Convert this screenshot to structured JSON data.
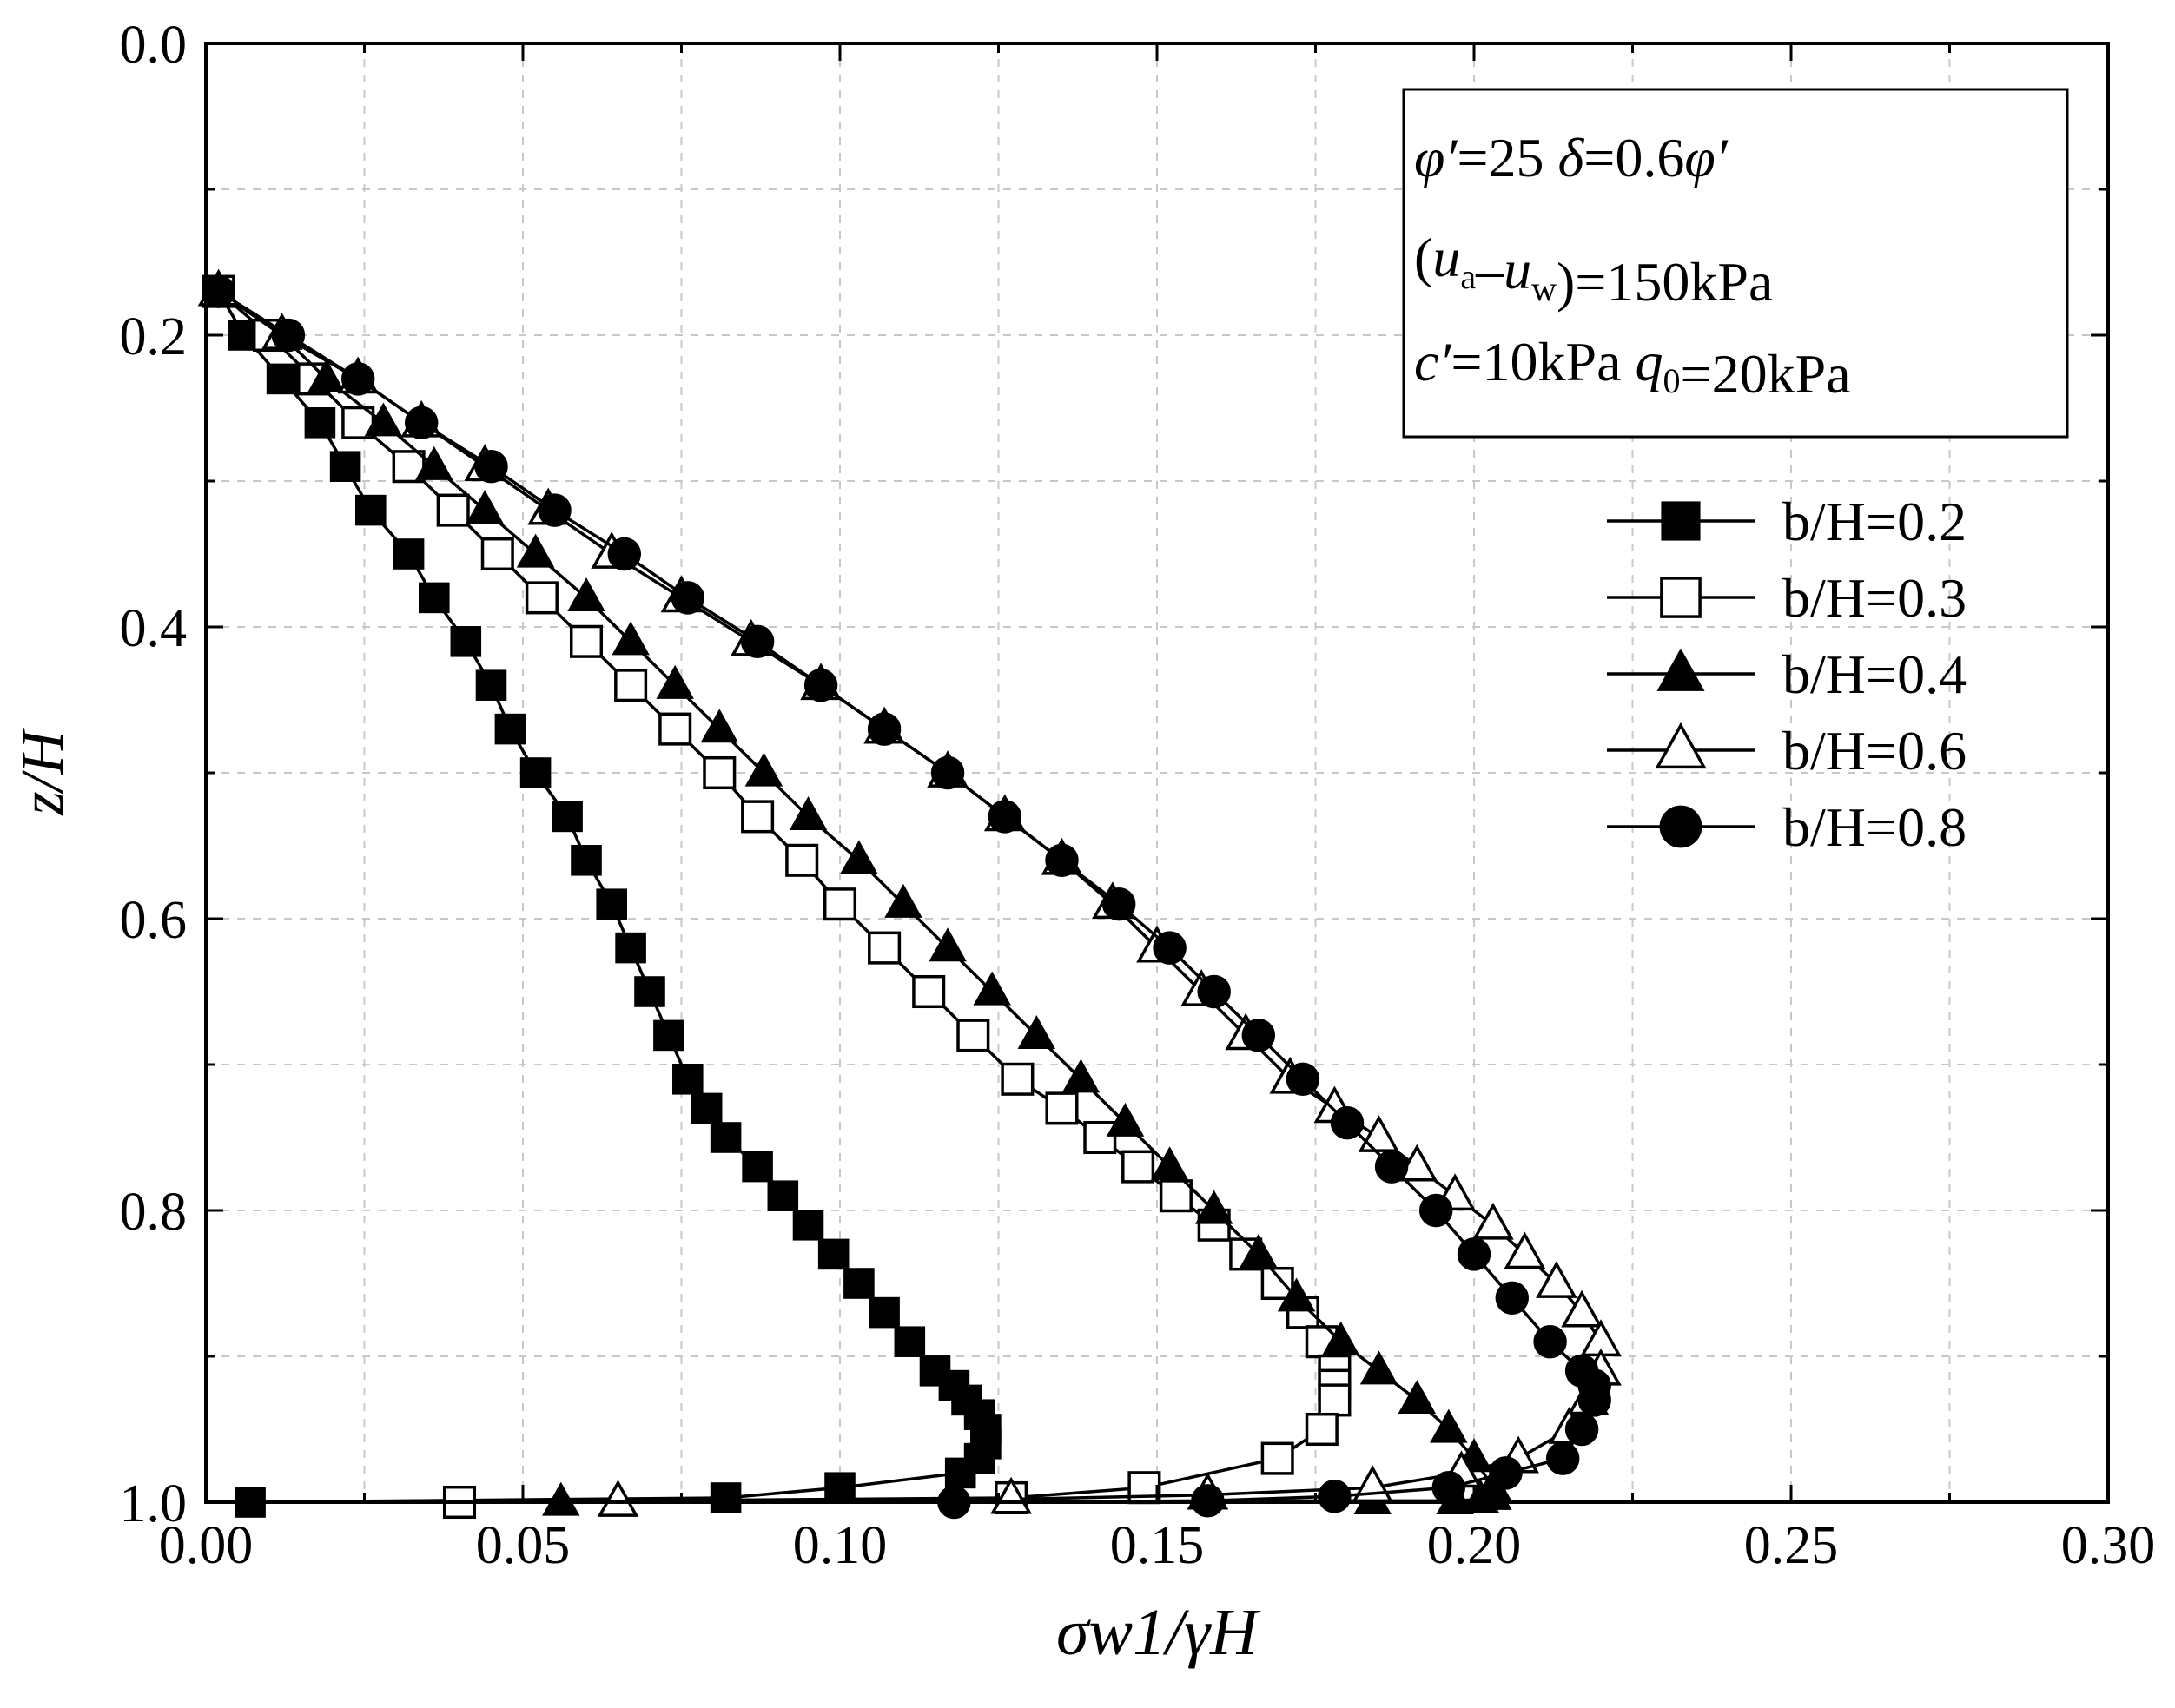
{
  "chart_data": {
    "type": "line",
    "xlabel": "σw1/γH",
    "ylabel": "z/H",
    "xlim": [
      0,
      0.3
    ],
    "ylim": [
      0,
      1.0
    ],
    "y_inverted": true,
    "grid": true,
    "grid_style": "dashed",
    "x_ticks": [
      "0.00",
      "0.05",
      "0.10",
      "0.15",
      "0.20",
      "0.25",
      "0.30"
    ],
    "y_ticks": [
      "0.0",
      "0.2",
      "0.4",
      "0.6",
      "0.8",
      "1.0"
    ],
    "annotation_lines": [
      [
        {
          "t": "φ′",
          "i": true
        },
        {
          "t": "=25      ",
          "i": false
        },
        {
          "t": "δ",
          "i": true
        },
        {
          "t": "=0.6",
          "i": false
        },
        {
          "t": "φ′",
          "i": true
        }
      ],
      [
        {
          "t": "(",
          "i": false
        },
        {
          "t": "u",
          "i": true
        },
        {
          "t": "a",
          "i": false,
          "sub": true
        },
        {
          "t": "–",
          "i": false
        },
        {
          "t": "u",
          "i": true
        },
        {
          "t": "w",
          "i": false,
          "sub": true
        },
        {
          "t": ")=150kPa",
          "i": false
        }
      ],
      [
        {
          "t": "c′",
          "i": true
        },
        {
          "t": "=10kPa   ",
          "i": false
        },
        {
          "t": "q",
          "i": true
        },
        {
          "t": "0",
          "i": false,
          "sub": true
        },
        {
          "t": "=20kPa",
          "i": false
        }
      ]
    ],
    "legend_position": "right",
    "series": [
      {
        "name": "b/H=0.2",
        "marker": "square-filled",
        "x": [
          0.002,
          0.006,
          0.012,
          0.018,
          0.022,
          0.026,
          0.032,
          0.036,
          0.041,
          0.045,
          0.048,
          0.052,
          0.057,
          0.06,
          0.064,
          0.067,
          0.07,
          0.073,
          0.076,
          0.079,
          0.082,
          0.087,
          0.091,
          0.095,
          0.099,
          0.103,
          0.107,
          0.111,
          0.115,
          0.118,
          0.12,
          0.122,
          0.123,
          0.123,
          0.122,
          0.119,
          0.1,
          0.082,
          0.007
        ],
        "y": [
          0.17,
          0.2,
          0.23,
          0.26,
          0.29,
          0.32,
          0.35,
          0.38,
          0.41,
          0.44,
          0.47,
          0.5,
          0.53,
          0.56,
          0.59,
          0.62,
          0.65,
          0.68,
          0.71,
          0.73,
          0.75,
          0.77,
          0.79,
          0.81,
          0.83,
          0.85,
          0.87,
          0.89,
          0.91,
          0.92,
          0.93,
          0.94,
          0.95,
          0.96,
          0.97,
          0.98,
          0.99,
          0.997,
          1.0
        ]
      },
      {
        "name": "b/H=0.3",
        "marker": "square-open",
        "x": [
          0.002,
          0.01,
          0.017,
          0.024,
          0.032,
          0.039,
          0.046,
          0.053,
          0.06,
          0.067,
          0.074,
          0.081,
          0.087,
          0.094,
          0.1,
          0.107,
          0.114,
          0.121,
          0.128,
          0.135,
          0.141,
          0.147,
          0.153,
          0.159,
          0.164,
          0.169,
          0.173,
          0.176,
          0.178,
          0.178,
          0.178,
          0.176,
          0.169,
          0.148,
          0.127,
          0.04
        ],
        "y": [
          0.17,
          0.2,
          0.23,
          0.26,
          0.29,
          0.32,
          0.35,
          0.38,
          0.41,
          0.44,
          0.47,
          0.5,
          0.53,
          0.56,
          0.59,
          0.62,
          0.65,
          0.68,
          0.71,
          0.73,
          0.75,
          0.77,
          0.79,
          0.81,
          0.83,
          0.85,
          0.87,
          0.89,
          0.91,
          0.92,
          0.93,
          0.95,
          0.97,
          0.99,
          0.997,
          1.0
        ]
      },
      {
        "name": "b/H=0.4",
        "marker": "triangle-filled",
        "x": [
          0.002,
          0.012,
          0.019,
          0.028,
          0.036,
          0.044,
          0.052,
          0.06,
          0.067,
          0.074,
          0.081,
          0.088,
          0.095,
          0.103,
          0.11,
          0.117,
          0.124,
          0.131,
          0.138,
          0.145,
          0.152,
          0.159,
          0.166,
          0.172,
          0.179,
          0.185,
          0.191,
          0.196,
          0.2,
          0.203,
          0.203,
          0.201,
          0.197,
          0.184,
          0.056
        ],
        "y": [
          0.17,
          0.2,
          0.23,
          0.26,
          0.29,
          0.32,
          0.35,
          0.38,
          0.41,
          0.44,
          0.47,
          0.5,
          0.53,
          0.56,
          0.59,
          0.62,
          0.65,
          0.68,
          0.71,
          0.74,
          0.77,
          0.8,
          0.83,
          0.86,
          0.89,
          0.91,
          0.93,
          0.95,
          0.97,
          0.99,
          0.996,
          0.998,
          0.999,
          0.999,
          1.0
        ]
      },
      {
        "name": "b/H=0.6",
        "marker": "triangle-open",
        "x": [
          0.002,
          0.012,
          0.024,
          0.034,
          0.044,
          0.054,
          0.064,
          0.075,
          0.086,
          0.097,
          0.107,
          0.117,
          0.126,
          0.135,
          0.143,
          0.15,
          0.157,
          0.164,
          0.171,
          0.178,
          0.185,
          0.191,
          0.197,
          0.203,
          0.208,
          0.213,
          0.217,
          0.22,
          0.22,
          0.218,
          0.215,
          0.207,
          0.198,
          0.184,
          0.158,
          0.127,
          0.065
        ],
        "y": [
          0.17,
          0.2,
          0.23,
          0.26,
          0.29,
          0.32,
          0.35,
          0.38,
          0.41,
          0.44,
          0.47,
          0.5,
          0.53,
          0.56,
          0.59,
          0.62,
          0.65,
          0.68,
          0.71,
          0.73,
          0.75,
          0.77,
          0.79,
          0.81,
          0.83,
          0.85,
          0.87,
          0.89,
          0.91,
          0.93,
          0.95,
          0.97,
          0.98,
          0.99,
          0.995,
          0.998,
          1.0
        ]
      },
      {
        "name": "b/H=0.8",
        "marker": "circle-filled",
        "x": [
          0.002,
          0.013,
          0.024,
          0.034,
          0.045,
          0.055,
          0.066,
          0.076,
          0.087,
          0.097,
          0.107,
          0.117,
          0.126,
          0.135,
          0.144,
          0.152,
          0.159,
          0.166,
          0.173,
          0.18,
          0.187,
          0.194,
          0.2,
          0.206,
          0.212,
          0.217,
          0.219,
          0.219,
          0.217,
          0.214,
          0.205,
          0.196,
          0.178,
          0.158,
          0.118
        ],
        "y": [
          0.17,
          0.2,
          0.23,
          0.26,
          0.29,
          0.32,
          0.35,
          0.38,
          0.41,
          0.44,
          0.47,
          0.5,
          0.53,
          0.56,
          0.59,
          0.62,
          0.65,
          0.68,
          0.71,
          0.74,
          0.77,
          0.8,
          0.83,
          0.86,
          0.89,
          0.91,
          0.92,
          0.93,
          0.95,
          0.97,
          0.98,
          0.99,
          0.996,
          0.999,
          1.0
        ]
      }
    ]
  }
}
